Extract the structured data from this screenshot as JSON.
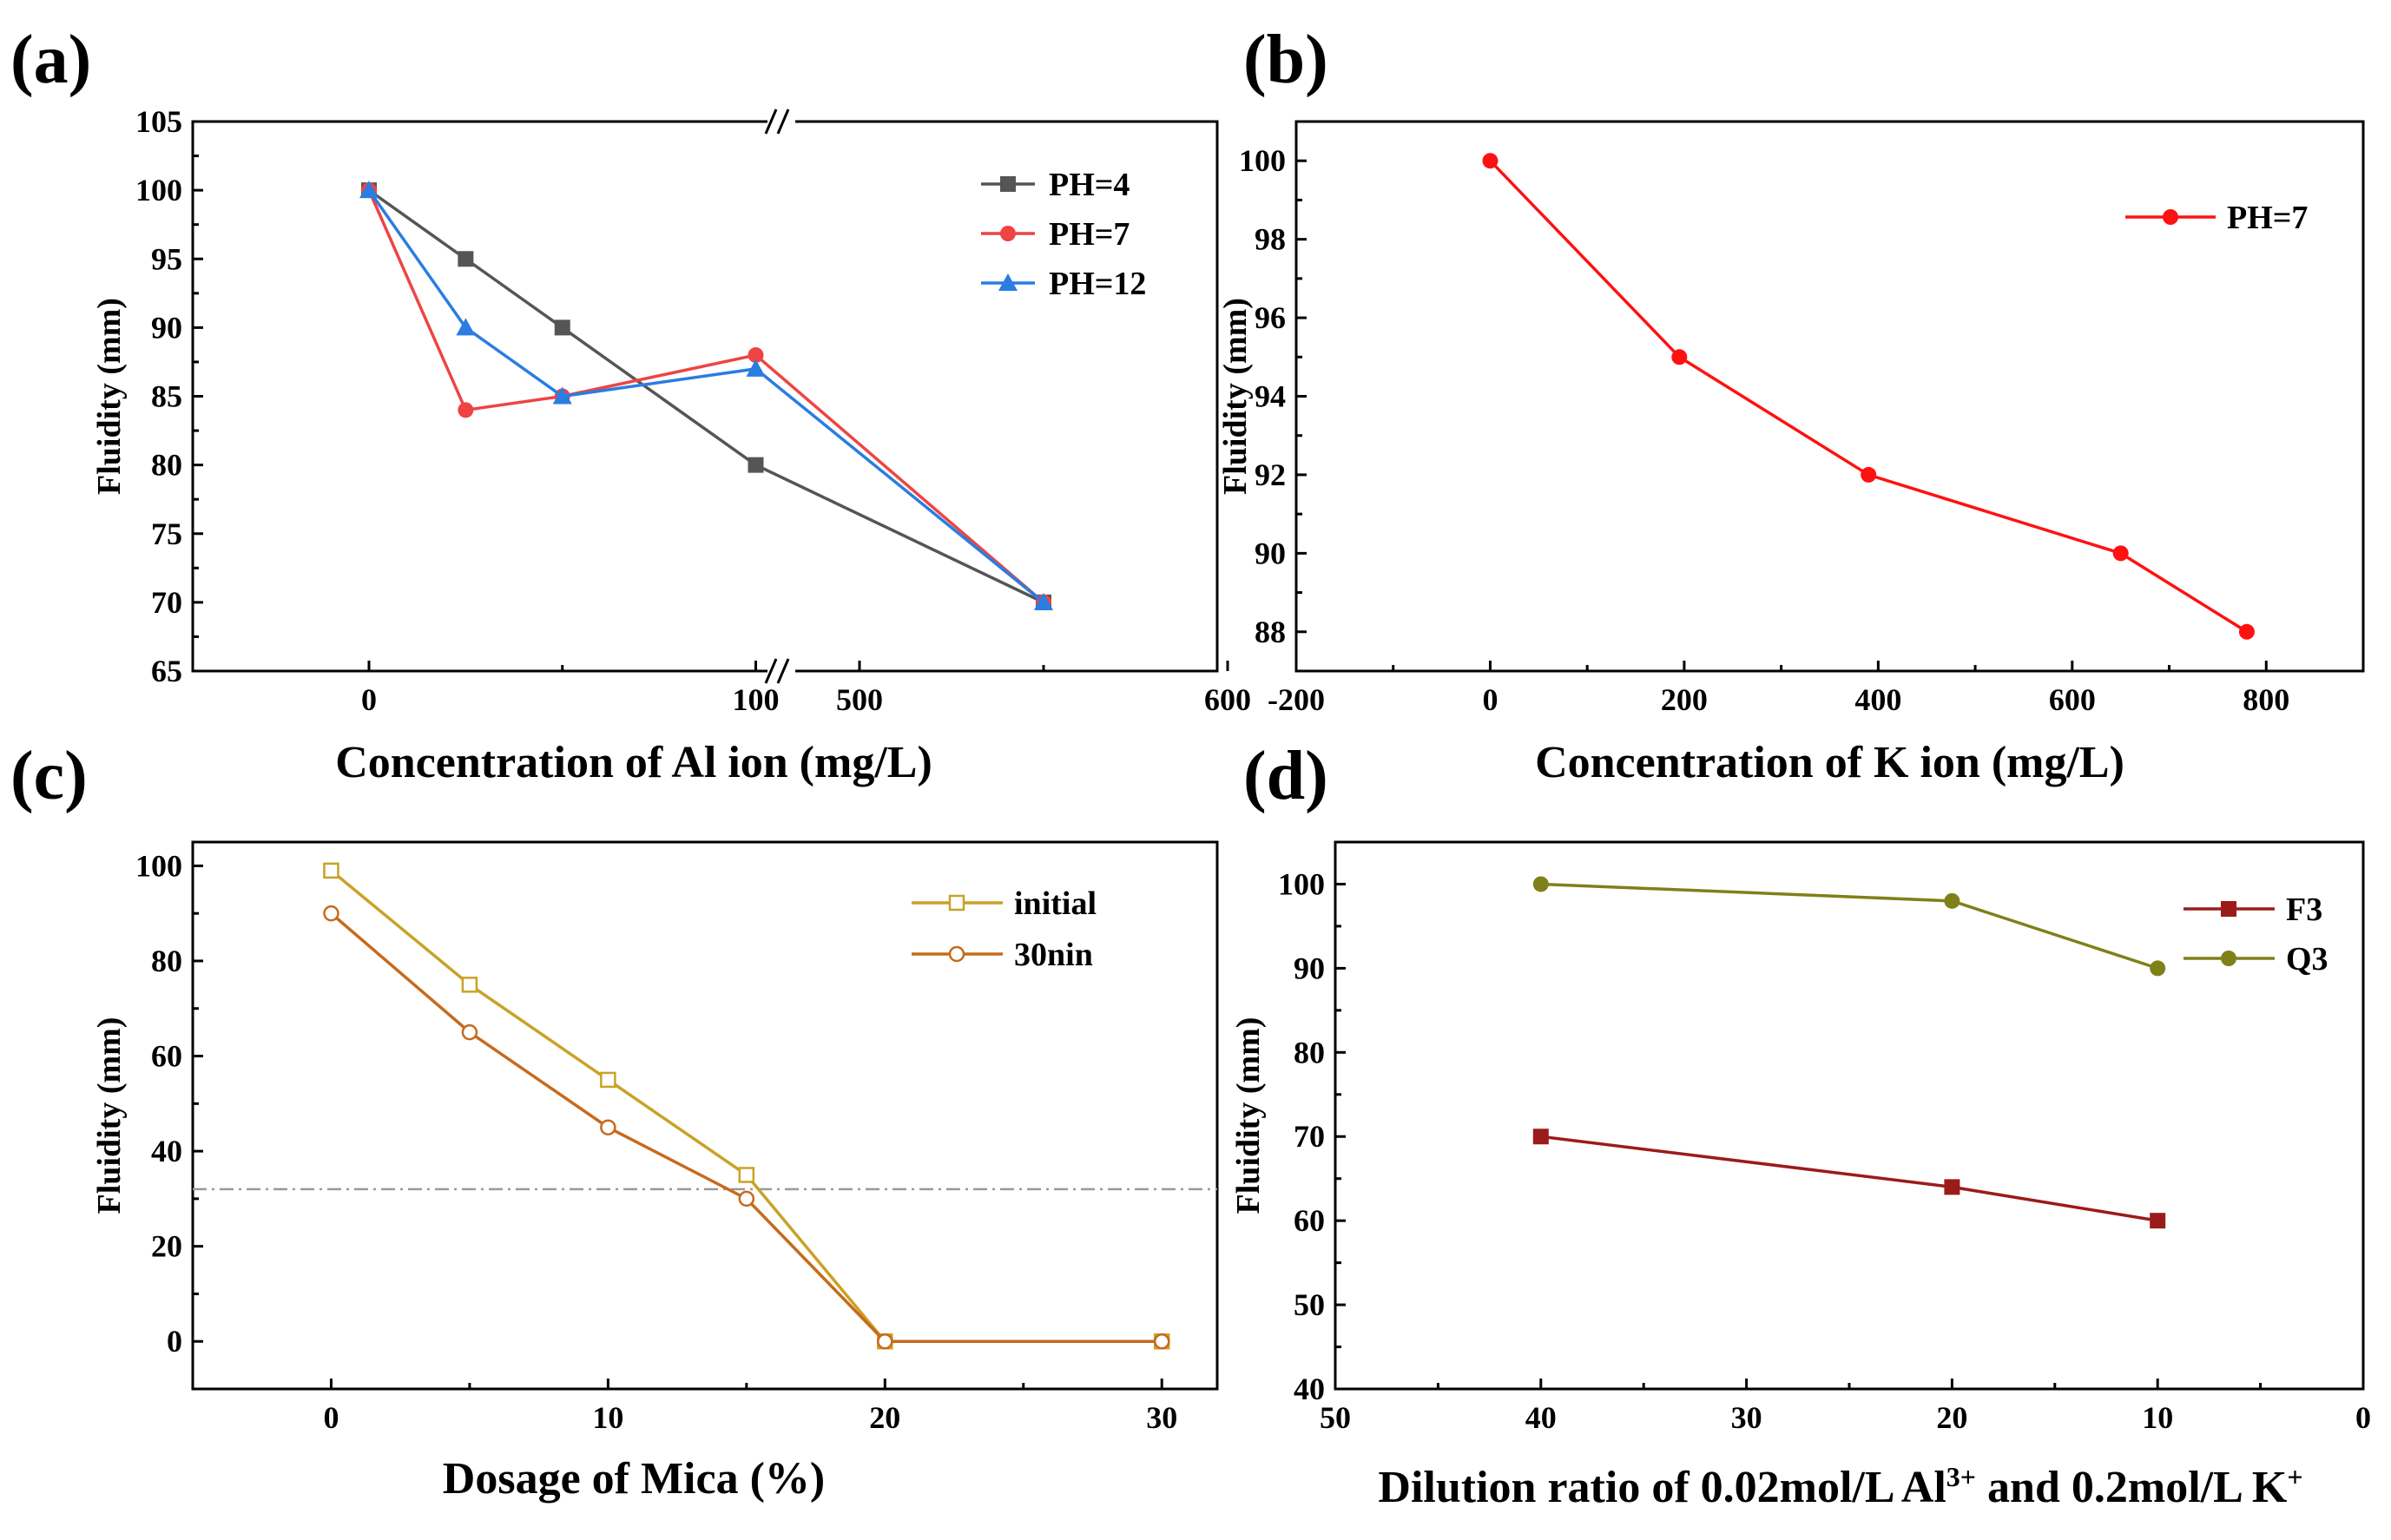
{
  "chart_data": [
    {
      "panel": "(a)",
      "type": "line",
      "xlabel": "Concentration of Al ion (mg/L)",
      "ylabel": "Fluidity (mm)",
      "ylim": [
        65,
        105
      ],
      "yticks": [
        "65",
        "70",
        "75",
        "80",
        "85",
        "90",
        "95",
        "100",
        "105"
      ],
      "xticks": [
        "0",
        "100",
        "500",
        "600"
      ],
      "axis_break": true,
      "series": [
        {
          "name": "PH=4",
          "color": "#555555",
          "marker": "square",
          "points": [
            [
              0,
              100
            ],
            [
              25,
              95
            ],
            [
              50,
              90
            ],
            [
              100,
              80
            ],
            [
              550,
              70
            ]
          ]
        },
        {
          "name": "PH=7",
          "color": "#ee4444",
          "marker": "circle",
          "points": [
            [
              0,
              100
            ],
            [
              25,
              84
            ],
            [
              50,
              85
            ],
            [
              100,
              88
            ],
            [
              550,
              70
            ]
          ]
        },
        {
          "name": "PH=12",
          "color": "#2a7de1",
          "marker": "triangle",
          "points": [
            [
              0,
              100
            ],
            [
              25,
              90
            ],
            [
              50,
              85
            ],
            [
              100,
              87
            ],
            [
              550,
              70
            ]
          ]
        }
      ]
    },
    {
      "panel": "(b)",
      "type": "line",
      "xlabel": "Concentration of K ion (mg/L)",
      "ylabel": "Fluidity (mm)",
      "xlim": [
        -200,
        900
      ],
      "ylim": [
        87,
        101
      ],
      "xticks": [
        "-200",
        "0",
        "200",
        "400",
        "600",
        "800"
      ],
      "yticks": [
        "88",
        "90",
        "92",
        "94",
        "96",
        "98",
        "100"
      ],
      "series": [
        {
          "name": "PH=7",
          "color": "#ff1111",
          "marker": "circle",
          "x": [
            0,
            195,
            390,
            650,
            780
          ],
          "y": [
            100,
            95,
            92,
            90,
            88
          ]
        }
      ]
    },
    {
      "panel": "(c)",
      "type": "line",
      "xlabel": "Dosage of Mica (%)",
      "ylabel": "Fluidity (mm)",
      "xlim": [
        -5,
        32
      ],
      "ylim": [
        -10,
        105
      ],
      "xticks": [
        "0",
        "10",
        "20",
        "30"
      ],
      "yticks": [
        "0",
        "20",
        "40",
        "60",
        "80",
        "100"
      ],
      "reference_line_y": 32,
      "series": [
        {
          "name": "initial",
          "color": "#c9a227",
          "marker": "open-square",
          "x": [
            0,
            5,
            10,
            15,
            20,
            30
          ],
          "y": [
            99,
            75,
            55,
            35,
            0,
            0
          ]
        },
        {
          "name": "30nin",
          "color": "#c76a1c",
          "marker": "open-circle",
          "x": [
            0,
            5,
            10,
            15,
            20,
            30
          ],
          "y": [
            90,
            65,
            45,
            30,
            0,
            0
          ]
        }
      ]
    },
    {
      "panel": "(d)",
      "type": "line",
      "xlabel_parts": [
        "Dilution ratio of 0.02mol/L Al",
        "3+",
        " and 0.2mol/L K",
        "+"
      ],
      "ylabel": "Fluidity (mm)",
      "xlim": [
        50,
        0
      ],
      "ylim": [
        40,
        105
      ],
      "xticks": [
        "50",
        "40",
        "30",
        "20",
        "10",
        "0"
      ],
      "yticks": [
        "40",
        "50",
        "60",
        "70",
        "80",
        "90",
        "100"
      ],
      "series": [
        {
          "name": "F3",
          "color": "#9b1b1b",
          "marker": "square",
          "x": [
            40,
            20,
            10
          ],
          "y": [
            70,
            64,
            60
          ]
        },
        {
          "name": "Q3",
          "color": "#808019",
          "marker": "circle",
          "x": [
            40,
            20,
            10
          ],
          "y": [
            100,
            98,
            90
          ]
        }
      ]
    }
  ]
}
